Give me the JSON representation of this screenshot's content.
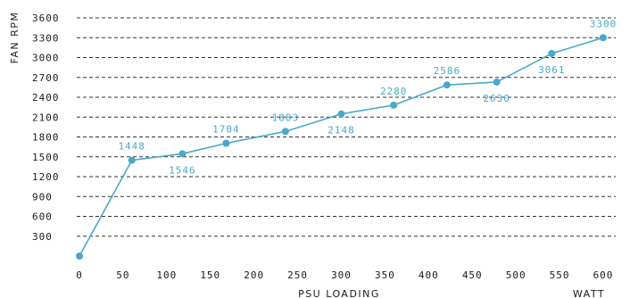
{
  "chart_data": {
    "type": "line",
    "xlabel": "PSU LOADING",
    "xunit": "WATT",
    "ylabel": "FAN RPM",
    "xlim": [
      0,
      600
    ],
    "ylim": [
      0,
      3600
    ],
    "x_ticks": [
      "0",
      "50",
      "100",
      "150",
      "200",
      "250",
      "300",
      "350",
      "400",
      "450",
      "500",
      "550",
      "600"
    ],
    "y_ticks": [
      "300",
      "600",
      "900",
      "1200",
      "1500",
      "1800",
      "2100",
      "2400",
      "2700",
      "3000",
      "3300",
      "3600"
    ],
    "y_tick_labels": [
      "300",
      "600",
      "900",
      "1200",
      "1500",
      "1800",
      "2100",
      "2400",
      "2700",
      "3000",
      "3300",
      "3600"
    ],
    "grid": true,
    "colors": {
      "line": "#4aa8c8",
      "labels": "#4aa8c8",
      "grid": "#333333"
    },
    "series": [
      {
        "x": [
          0,
          60,
          118,
          168,
          236,
          300,
          360,
          421,
          478,
          541,
          600
        ],
        "y": [
          0,
          1448,
          1546,
          1704,
          1883,
          2148,
          2280,
          2586,
          2630,
          3061,
          3300
        ],
        "labels": [
          "",
          "1448",
          "1546",
          "1704",
          "1883",
          "2148",
          "2280",
          "2586",
          "2630",
          "3061",
          "3300"
        ],
        "label_pos": [
          "",
          "above",
          "below",
          "above",
          "above",
          "below",
          "above",
          "above",
          "below",
          "below",
          "above"
        ]
      }
    ]
  }
}
